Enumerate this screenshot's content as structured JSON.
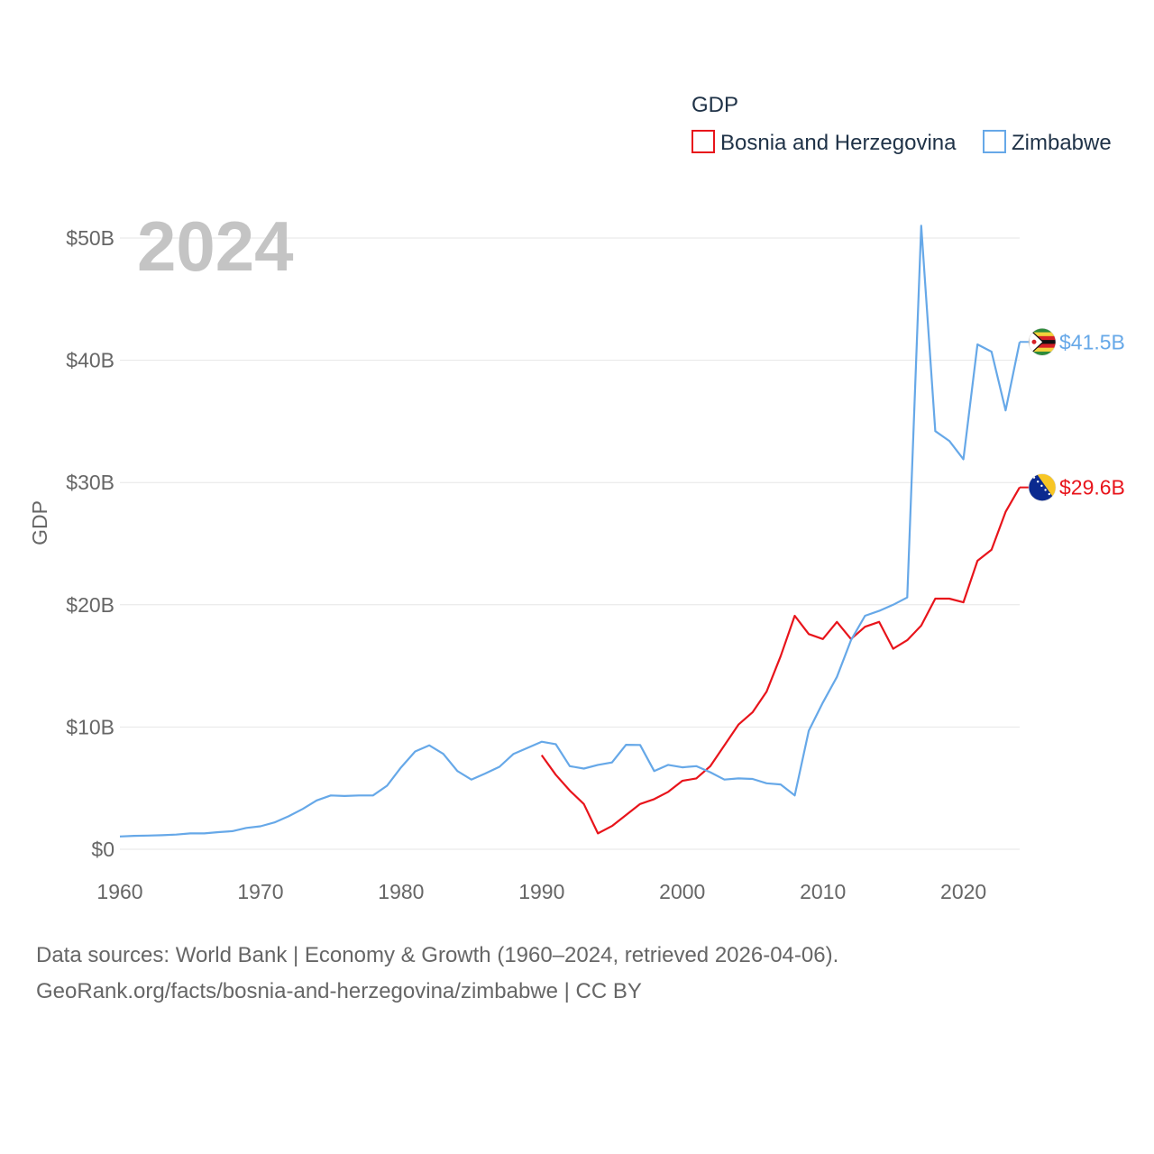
{
  "chart_data": {
    "type": "line",
    "ylabel": "GDP",
    "year_overlay": "2024",
    "legend": {
      "title": "GDP",
      "placement": "top-right"
    },
    "x_ticks": [
      "1960",
      "1970",
      "1980",
      "1990",
      "2000",
      "2010",
      "2020"
    ],
    "y_ticks": [
      {
        "value": 0,
        "label": "$0"
      },
      {
        "value": 10,
        "label": "$10B"
      },
      {
        "value": 20,
        "label": "$20B"
      },
      {
        "value": 30,
        "label": "$30B"
      },
      {
        "value": 40,
        "label": "$40B"
      },
      {
        "value": 50,
        "label": "$50B"
      }
    ],
    "xlim": [
      1960,
      2024
    ],
    "ylim": [
      0,
      50
    ],
    "units": "billions USD",
    "series": [
      {
        "name": "Bosnia and Herzegovina",
        "color": "#e8141b",
        "end_label": "$29.6B",
        "flag_icon": "bosnia-flag-icon",
        "x": [
          1990,
          1991,
          1992,
          1993,
          1994,
          1995,
          1996,
          1997,
          1998,
          1999,
          2000,
          2001,
          2002,
          2003,
          2004,
          2005,
          2006,
          2007,
          2008,
          2009,
          2010,
          2011,
          2012,
          2013,
          2014,
          2015,
          2016,
          2017,
          2018,
          2019,
          2020,
          2021,
          2022,
          2023,
          2024
        ],
        "values": [
          7.7,
          6.1,
          4.8,
          3.7,
          1.3,
          1.9,
          2.8,
          3.7,
          4.1,
          4.7,
          5.6,
          5.8,
          6.8,
          8.5,
          10.2,
          11.2,
          12.9,
          15.8,
          19.1,
          17.6,
          17.2,
          18.6,
          17.2,
          18.2,
          18.6,
          16.4,
          17.1,
          18.3,
          20.5,
          20.5,
          20.2,
          23.6,
          24.5,
          27.6,
          29.6
        ]
      },
      {
        "name": "Zimbabwe",
        "color": "#66a8e8",
        "end_label": "$41.5B",
        "flag_icon": "zimbabwe-flag-icon",
        "x": [
          1960,
          1961,
          1962,
          1963,
          1964,
          1965,
          1966,
          1967,
          1968,
          1969,
          1970,
          1971,
          1972,
          1973,
          1974,
          1975,
          1976,
          1977,
          1978,
          1979,
          1980,
          1981,
          1982,
          1983,
          1984,
          1985,
          1986,
          1987,
          1988,
          1989,
          1990,
          1991,
          1992,
          1993,
          1994,
          1995,
          1996,
          1997,
          1998,
          1999,
          2000,
          2001,
          2002,
          2003,
          2004,
          2005,
          2006,
          2007,
          2008,
          2009,
          2010,
          2011,
          2012,
          2013,
          2014,
          2015,
          2016,
          2017,
          2018,
          2019,
          2020,
          2021,
          2022,
          2023,
          2024
        ],
        "values": [
          1.05,
          1.1,
          1.12,
          1.15,
          1.2,
          1.3,
          1.3,
          1.4,
          1.48,
          1.75,
          1.88,
          2.2,
          2.7,
          3.3,
          4.0,
          4.4,
          4.36,
          4.4,
          4.4,
          5.2,
          6.7,
          8.0,
          8.5,
          7.8,
          6.4,
          5.7,
          6.2,
          6.75,
          7.8,
          8.3,
          8.8,
          8.6,
          6.8,
          6.6,
          6.9,
          7.1,
          8.55,
          8.53,
          6.4,
          6.9,
          6.7,
          6.8,
          6.3,
          5.7,
          5.8,
          5.75,
          5.4,
          5.3,
          4.4,
          9.7,
          12.0,
          14.1,
          17.1,
          19.1,
          19.5,
          20.0,
          20.6,
          51.0,
          34.2,
          33.4,
          31.9,
          41.3,
          40.7,
          35.9,
          41.5
        ]
      }
    ]
  },
  "source": {
    "line1": "Data sources: World Bank | Economy & Growth (1960–2024, retrieved 2026-04-06).",
    "line2": "GeoRank.org/facts/bosnia-and-herzegovina/zimbabwe | CC BY"
  }
}
